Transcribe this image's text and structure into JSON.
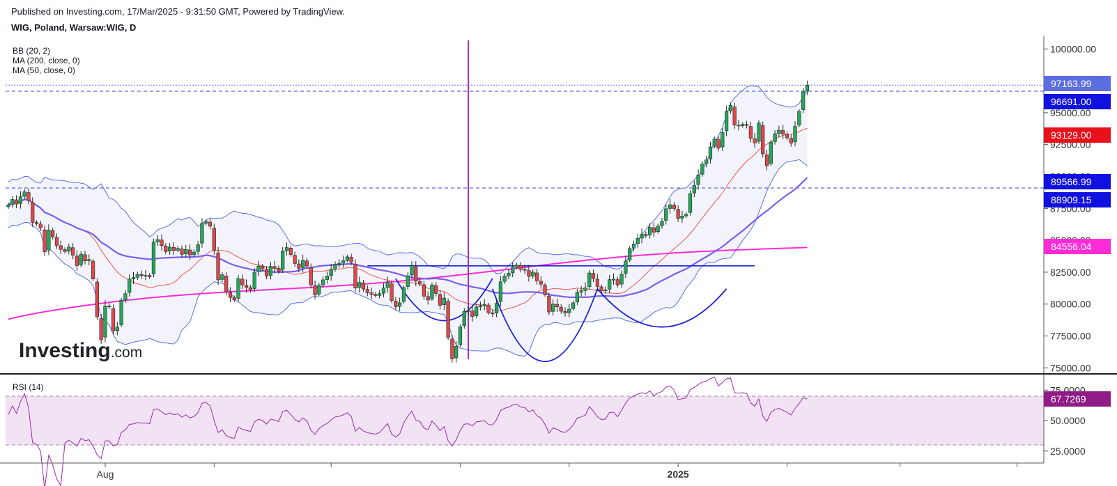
{
  "header": {
    "published": "Published on Investing.com, 17/Mar/2025 - 9:31:50 GMT, Powered by TradingView.",
    "symbol": "WIG, Poland, Warsaw:WIG, D"
  },
  "indicators": [
    "BB (20, 2)",
    "MA (200, close, 0)",
    "MA (50, close, 0)"
  ],
  "rsi_label": "RSI (14)",
  "logo": "Investing.com",
  "colors": {
    "up": "#26a65b",
    "down": "#e0474c",
    "bb_band": "#5b6ee1",
    "bb_basis": "#ef5350",
    "ma200": "#ff2bd6",
    "ma50": "#7b5cf0",
    "rsi": "#9c27b0",
    "pattern": "#1a23d6",
    "vline": "#9c27b0",
    "grid_dash": "#3a3fd6"
  },
  "chart_data": {
    "type": "candlestick",
    "title": "WIG, Poland, Warsaw:WIG, D",
    "ylim": [
      74800,
      101000
    ],
    "y_ticks": [
      "100000.00",
      "97500.00",
      "95000.00",
      "92500.00",
      "90000.00",
      "87500.00",
      "85000.00",
      "82500.00",
      "80000.00",
      "77500.00",
      "75000.00"
    ],
    "x_labels": [
      {
        "label": "Aug",
        "bold": false,
        "i": 24
      },
      {
        "label": "",
        "bold": false,
        "i": 51
      },
      {
        "label": "",
        "bold": false,
        "i": 80
      },
      {
        "label": "",
        "bold": false,
        "i": 112
      },
      {
        "label": "",
        "bold": false,
        "i": 139
      },
      {
        "label": "2025",
        "bold": true,
        "i": 166
      },
      {
        "label": "",
        "bold": false,
        "i": 193
      },
      {
        "label": "",
        "bold": false,
        "i": 221
      },
      {
        "label": "",
        "bold": false,
        "i": 250
      }
    ],
    "price_tags": [
      {
        "value": 97163.99,
        "text": "97163.99",
        "bg": "#5b6ee1",
        "fg": "#ffffff"
      },
      {
        "value": 96691.0,
        "text": "96691.00",
        "bg": "#1010e0",
        "fg": "#ffffff"
      },
      {
        "value": 93129.0,
        "text": "93129.00",
        "bg": "#e8101a",
        "fg": "#ffffff"
      },
      {
        "value": 89566.99,
        "text": "89566.99",
        "bg": "#1010e0",
        "fg": "#ffffff"
      },
      {
        "value": 88909.15,
        "text": "88909.15",
        "bg": "#1010e0",
        "fg": "#ffffff"
      },
      {
        "value": 84556.04,
        "text": "84556.04",
        "bg": "#ff2bd6",
        "fg": "#ffffff"
      }
    ],
    "h_lines": [
      97163.99,
      96691.0,
      89100
    ],
    "neckline": {
      "from_i": 89,
      "to_i": 185,
      "value": 83000
    },
    "vertical_line_i": 114,
    "shoulders": [
      {
        "from_i": 96,
        "to_i": 120,
        "top": 82000,
        "bottom": 78700
      },
      {
        "from_i": 120,
        "to_i": 146,
        "top": 81200,
        "bottom": 75500
      },
      {
        "from_i": 146,
        "to_i": 178,
        "top": 81200,
        "bottom": 78200
      }
    ],
    "closes": [
      87780,
      88200,
      87840,
      88410,
      88800,
      88100,
      86400,
      86300,
      85970,
      84100,
      85800,
      85280,
      84600,
      84280,
      84120,
      84470,
      83840,
      83020,
      83910,
      83390,
      83490,
      81970,
      79000,
      77200,
      79850,
      79800,
      77900,
      78200,
      80300,
      80820,
      81960,
      82080,
      82330,
      82240,
      82250,
      82140,
      84870,
      85060,
      84590,
      84120,
      84470,
      84210,
      84360,
      83900,
      84280,
      83850,
      84080,
      84650,
      86320,
      86460,
      86100,
      84200,
      81900,
      82300,
      80970,
      80520,
      80320,
      82000,
      81500,
      81300,
      81100,
      82500,
      82980,
      82760,
      82190,
      82950,
      82820,
      82590,
      84160,
      84430,
      83880,
      83180,
      82810,
      83420,
      82980,
      81500,
      80730,
      81480,
      81900,
      82200,
      82710,
      83120,
      83200,
      83400,
      83700,
      83300,
      81270,
      81700,
      81180,
      80900,
      80770,
      80670,
      80820,
      81260,
      81700,
      80280,
      79800,
      80100,
      81300,
      82220,
      83000,
      81800,
      81600,
      80620,
      80320,
      81500,
      80840,
      79900,
      80470,
      77400,
      75700,
      76700,
      78220,
      79420,
      79500,
      79030,
      79780,
      79880,
      79980,
      79320,
      79230,
      80060,
      81740,
      82200,
      82430,
      82880,
      83060,
      82720,
      82670,
      82170,
      82500,
      81820,
      81560,
      80740,
      79380,
      80000,
      79790,
      79440,
      79300,
      79600,
      80100,
      80920,
      81050,
      81270,
      82440,
      82000,
      81380,
      81060,
      81110,
      81920,
      81950,
      81500,
      82330,
      83380,
      84360,
      84710,
      85150,
      85470,
      85370,
      86020,
      85640,
      86120,
      86480,
      87470,
      87790,
      87490,
      86720,
      86900,
      87050,
      88660,
      89310,
      90110,
      90990,
      91300,
      92320,
      92950,
      92220,
      93450,
      95100,
      95580,
      94030,
      93980,
      94090,
      94010,
      93000,
      92630,
      94190,
      91780,
      90850,
      92690,
      93360,
      93630,
      93330,
      93030,
      92620,
      93930,
      95110,
      96690,
      97163.99
    ],
    "rsi": {
      "title": "RSI (14)",
      "ylim": [
        18,
        82
      ],
      "y_ticks": [
        "75.0000",
        "50.0000",
        "25.0000"
      ],
      "levels": [
        70,
        30
      ],
      "last_tag": {
        "value": 67.7269,
        "text": "67.7269",
        "bg": "#8e1b86",
        "fg": "#ffffff"
      }
    }
  }
}
